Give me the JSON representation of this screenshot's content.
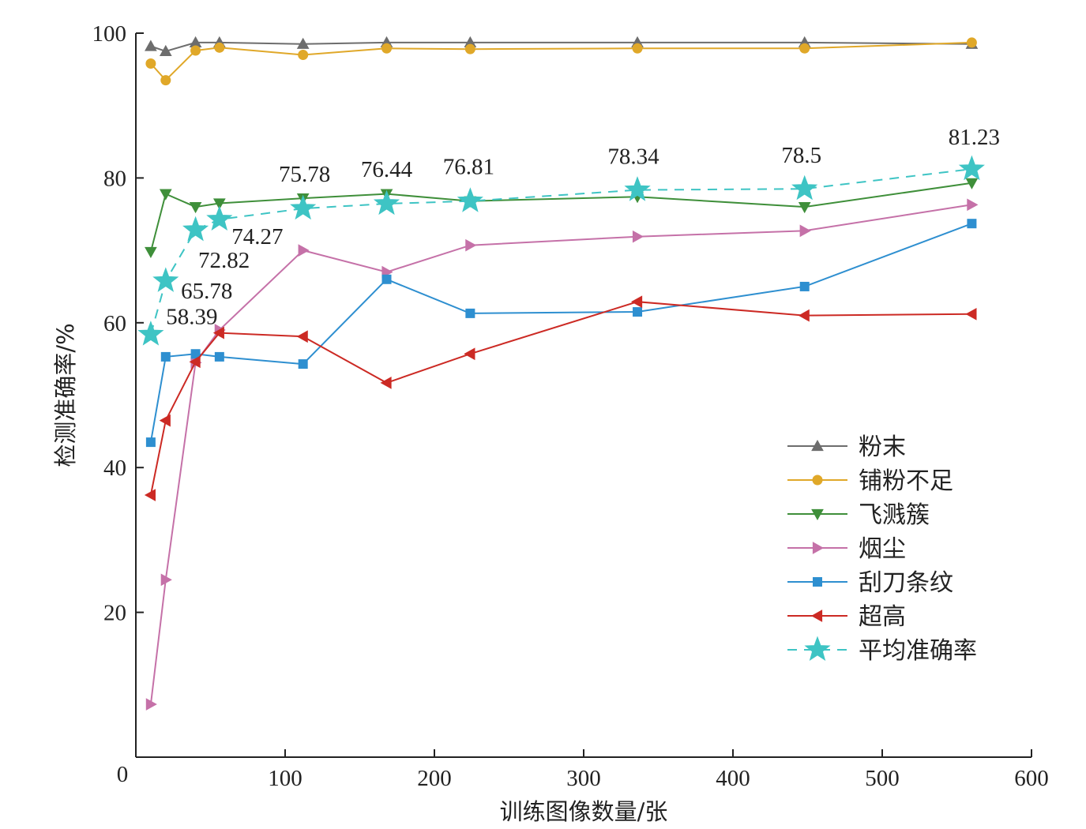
{
  "chart_data": {
    "type": "line",
    "title": "",
    "xlabel": "训练图像数量/张",
    "ylabel": "检测准确率/%",
    "xlim": [
      0,
      600
    ],
    "ylim": [
      0,
      100
    ],
    "x_ticks": [
      100,
      200,
      300,
      400,
      500,
      600
    ],
    "y_ticks": [
      20,
      40,
      60,
      80,
      100
    ],
    "origin_label": "0",
    "grid": false,
    "legend_position": "bottom-right",
    "x": [
      10,
      20,
      40,
      56,
      112,
      168,
      224,
      336,
      448,
      560
    ],
    "series": [
      {
        "name": "粉末",
        "color": "#6d6d6d",
        "marker": "triangle-up",
        "dashed": false,
        "values": [
          98.2,
          97.5,
          98.7,
          98.7,
          98.5,
          98.7,
          98.7,
          98.7,
          98.7,
          98.5
        ]
      },
      {
        "name": "铺粉不足",
        "color": "#e0a829",
        "marker": "circle",
        "dashed": false,
        "values": [
          95.8,
          93.5,
          97.6,
          98.0,
          97.0,
          97.9,
          97.8,
          97.9,
          97.9,
          98.7
        ]
      },
      {
        "name": "飞溅簇",
        "color": "#3f8f3a",
        "marker": "triangle-down",
        "dashed": false,
        "values": [
          69.8,
          77.8,
          76.0,
          76.5,
          77.2,
          77.8,
          76.8,
          77.4,
          76.0,
          79.3
        ]
      },
      {
        "name": "烟尘",
        "color": "#c571a8",
        "marker": "triangle-right",
        "dashed": false,
        "values": [
          7.3,
          24.5,
          54.5,
          59.0,
          70.0,
          67.0,
          70.7,
          71.9,
          72.7,
          76.3
        ]
      },
      {
        "name": "刮刀条纹",
        "color": "#2e8fd0",
        "marker": "square",
        "dashed": false,
        "values": [
          43.5,
          55.3,
          55.7,
          55.3,
          54.3,
          66.0,
          61.3,
          61.5,
          65.0,
          73.7
        ]
      },
      {
        "name": "超高",
        "color": "#cc2a24",
        "marker": "triangle-left",
        "dashed": false,
        "values": [
          36.2,
          46.5,
          54.6,
          58.6,
          58.1,
          51.7,
          55.7,
          62.9,
          61.0,
          61.2
        ]
      },
      {
        "name": "平均准确率",
        "color": "#3ec4c4",
        "marker": "star",
        "dashed": true,
        "values": [
          58.39,
          65.78,
          72.82,
          74.27,
          75.78,
          76.44,
          76.81,
          78.34,
          78.5,
          81.23
        ],
        "labels": [
          "58.39",
          "65.78",
          "72.82",
          "74.27",
          "75.78",
          "76.44",
          "76.81",
          "78.34",
          "78.5",
          "81.23"
        ]
      }
    ]
  }
}
